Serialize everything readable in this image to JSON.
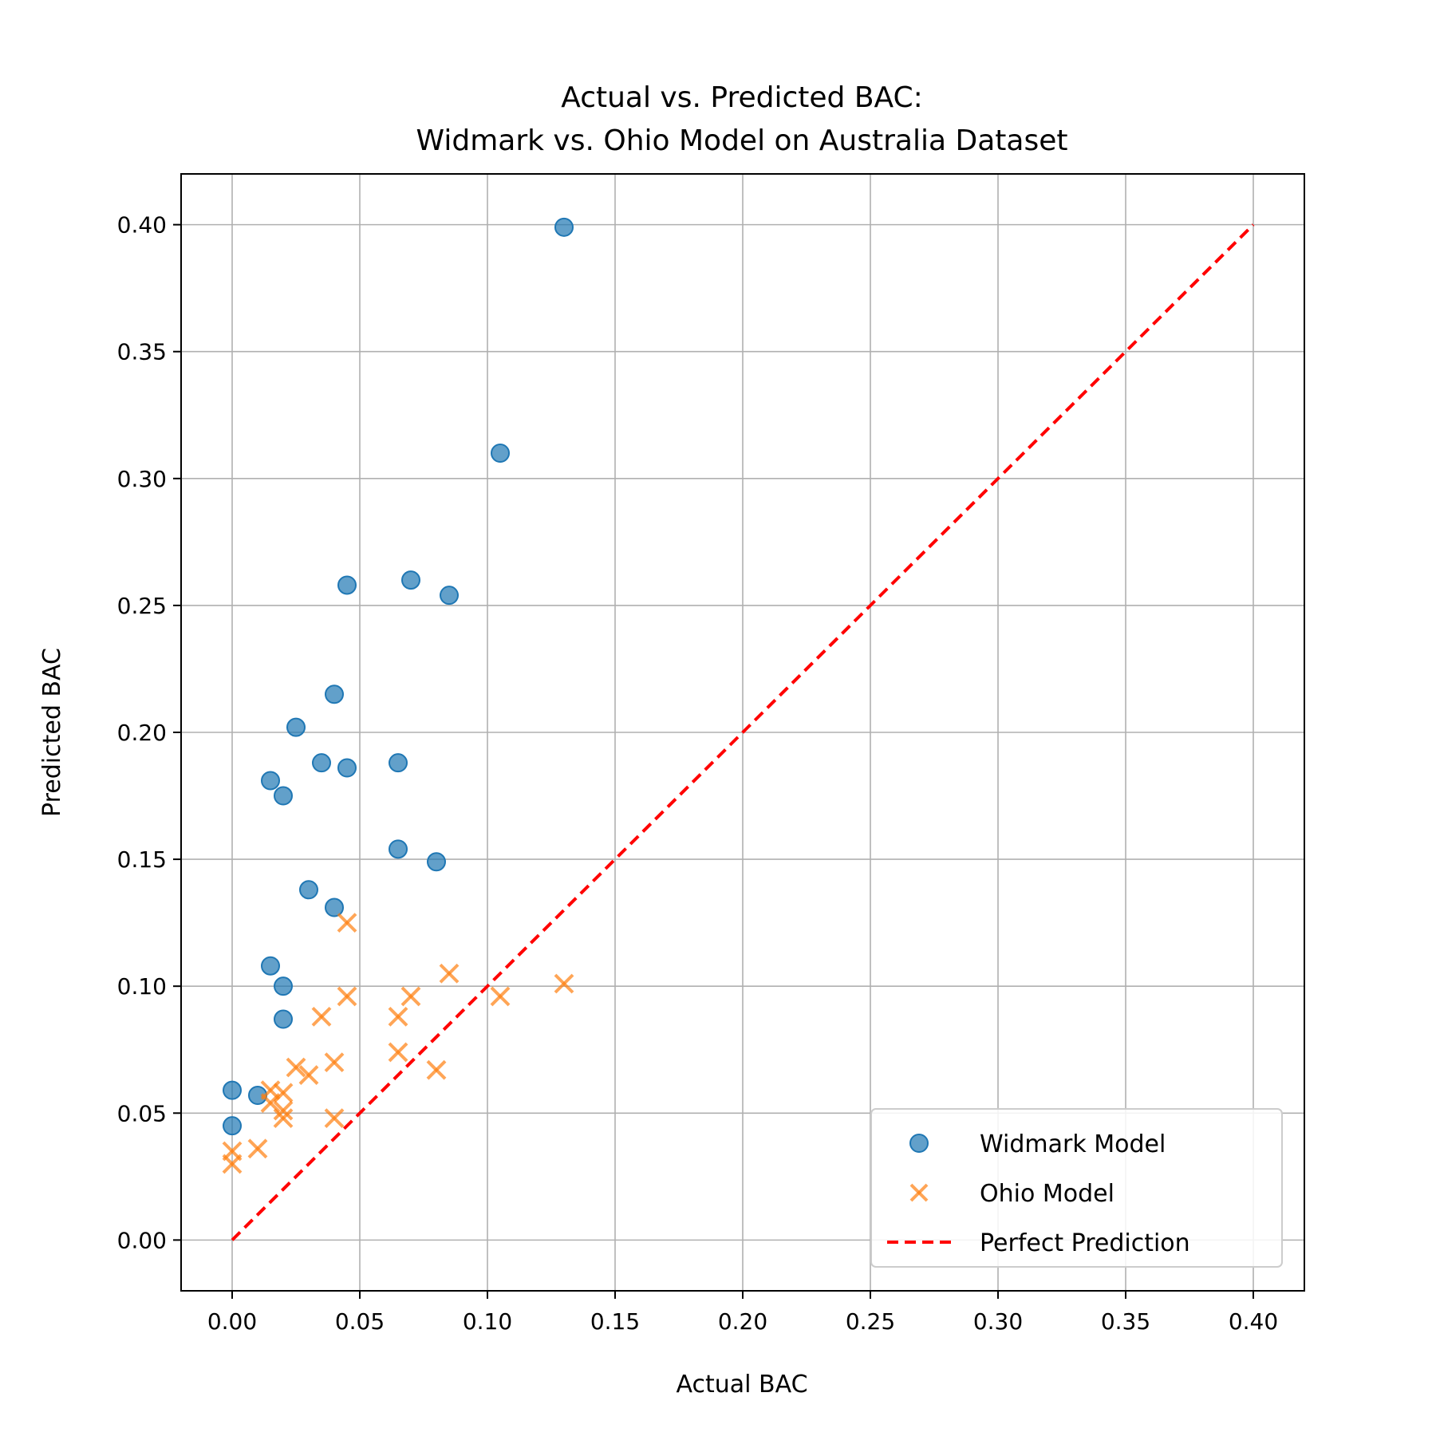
{
  "chart_data": {
    "type": "scatter",
    "title": [
      "Actual vs. Predicted BAC:",
      "Widmark vs. Ohio Model on Australia Dataset"
    ],
    "xlabel": "Actual BAC",
    "ylabel": "Predicted BAC",
    "xlim": [
      -0.02,
      0.42
    ],
    "ylim": [
      -0.02,
      0.42
    ],
    "xticks": [
      "0.00",
      "0.05",
      "0.10",
      "0.15",
      "0.20",
      "0.25",
      "0.30",
      "0.35",
      "0.40"
    ],
    "yticks": [
      "0.00",
      "0.05",
      "0.10",
      "0.15",
      "0.20",
      "0.25",
      "0.30",
      "0.35",
      "0.40"
    ],
    "grid": true,
    "legend_position": "lower-right",
    "series": [
      {
        "name": "Widmark Model",
        "marker": "circle",
        "color": "#1f77b4",
        "points": [
          [
            0.13,
            0.399
          ],
          [
            0.105,
            0.31
          ],
          [
            0.045,
            0.258
          ],
          [
            0.07,
            0.26
          ],
          [
            0.085,
            0.254
          ],
          [
            0.04,
            0.215
          ],
          [
            0.025,
            0.202
          ],
          [
            0.015,
            0.181
          ],
          [
            0.02,
            0.175
          ],
          [
            0.035,
            0.188
          ],
          [
            0.045,
            0.186
          ],
          [
            0.065,
            0.188
          ],
          [
            0.065,
            0.154
          ],
          [
            0.08,
            0.149
          ],
          [
            0.03,
            0.138
          ],
          [
            0.04,
            0.131
          ],
          [
            0.015,
            0.108
          ],
          [
            0.02,
            0.1
          ],
          [
            0.02,
            0.087
          ],
          [
            0.0,
            0.059
          ],
          [
            0.01,
            0.057
          ],
          [
            0.0,
            0.045
          ]
        ]
      },
      {
        "name": "Ohio Model",
        "marker": "x",
        "color": "#ff7f0e",
        "points": [
          [
            0.045,
            0.125
          ],
          [
            0.085,
            0.105
          ],
          [
            0.13,
            0.101
          ],
          [
            0.045,
            0.096
          ],
          [
            0.07,
            0.096
          ],
          [
            0.105,
            0.096
          ],
          [
            0.035,
            0.088
          ],
          [
            0.065,
            0.088
          ],
          [
            0.065,
            0.074
          ],
          [
            0.04,
            0.07
          ],
          [
            0.025,
            0.068
          ],
          [
            0.03,
            0.065
          ],
          [
            0.08,
            0.067
          ],
          [
            0.015,
            0.059
          ],
          [
            0.02,
            0.058
          ],
          [
            0.015,
            0.054
          ],
          [
            0.02,
            0.051
          ],
          [
            0.02,
            0.048
          ],
          [
            0.04,
            0.048
          ],
          [
            0.01,
            0.036
          ],
          [
            0.0,
            0.035
          ],
          [
            0.0,
            0.03
          ]
        ]
      },
      {
        "name": "Perfect Prediction",
        "marker": "dashed-line",
        "color": "#ff0000",
        "points": [
          [
            0.0,
            0.0
          ],
          [
            0.4,
            0.4
          ]
        ]
      }
    ]
  }
}
